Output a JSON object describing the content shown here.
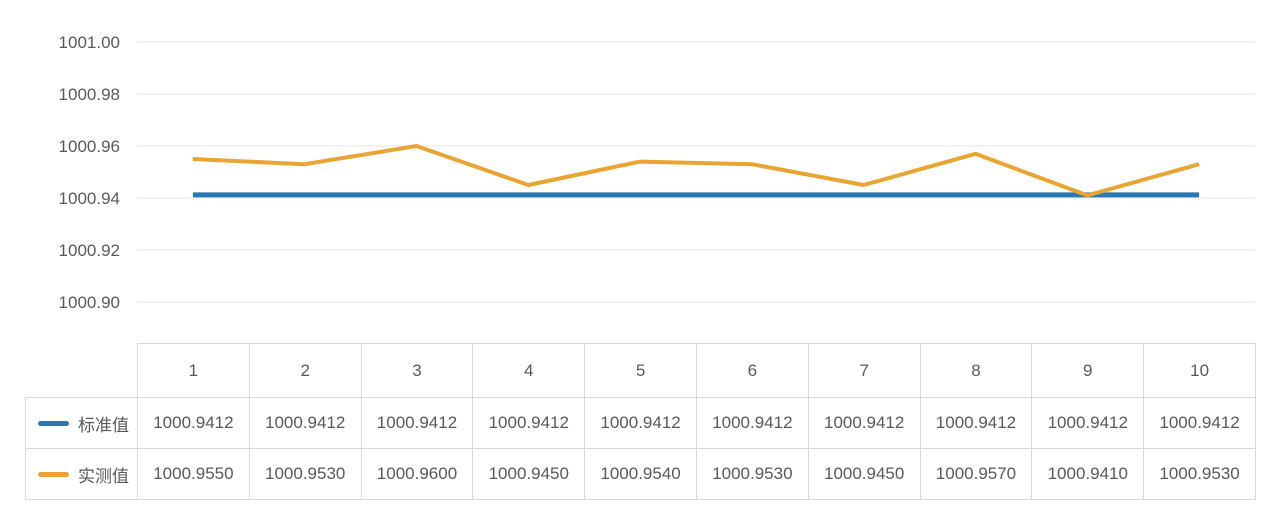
{
  "chart_data": {
    "type": "line",
    "title": "",
    "xlabel": "",
    "ylabel": "",
    "categories": [
      "1",
      "2",
      "3",
      "4",
      "5",
      "6",
      "7",
      "8",
      "9",
      "10"
    ],
    "series": [
      {
        "name": "标准值",
        "color": "#2878b4",
        "values": [
          1000.9412,
          1000.9412,
          1000.9412,
          1000.9412,
          1000.9412,
          1000.9412,
          1000.9412,
          1000.9412,
          1000.9412,
          1000.9412
        ]
      },
      {
        "name": "实测值",
        "color": "#eaa432",
        "values": [
          1000.955,
          1000.953,
          1000.96,
          1000.945,
          1000.954,
          1000.953,
          1000.945,
          1000.957,
          1000.941,
          1000.953
        ]
      }
    ],
    "y_ticks": [
      "1001.00",
      "1000.98",
      "1000.96",
      "1000.94",
      "1000.92",
      "1000.90"
    ],
    "ylim": [
      1000.9,
      1001.0
    ],
    "grid": true,
    "legend_position": "table-rows-left"
  },
  "table": {
    "corner_label": "",
    "column_headers": [
      "1",
      "2",
      "3",
      "4",
      "5",
      "6",
      "7",
      "8",
      "9",
      "10"
    ],
    "rows": [
      {
        "label": "标准值",
        "swatch_color": "#2878b4",
        "values": [
          "1000.9412",
          "1000.9412",
          "1000.9412",
          "1000.9412",
          "1000.9412",
          "1000.9412",
          "1000.9412",
          "1000.9412",
          "1000.9412",
          "1000.9412"
        ]
      },
      {
        "label": "实测值",
        "swatch_color": "#eaa432",
        "values": [
          "1000.9550",
          "1000.9530",
          "1000.9600",
          "1000.9450",
          "1000.9540",
          "1000.9530",
          "1000.9450",
          "1000.9570",
          "1000.9410",
          "1000.9530"
        ]
      }
    ]
  },
  "colors": {
    "standard_line": "#2878b4",
    "measured_line": "#eaa432",
    "grid_line": "#e6e6e6",
    "table_border": "#d9d9d9",
    "text": "#58595b",
    "background": "#ffffff"
  }
}
